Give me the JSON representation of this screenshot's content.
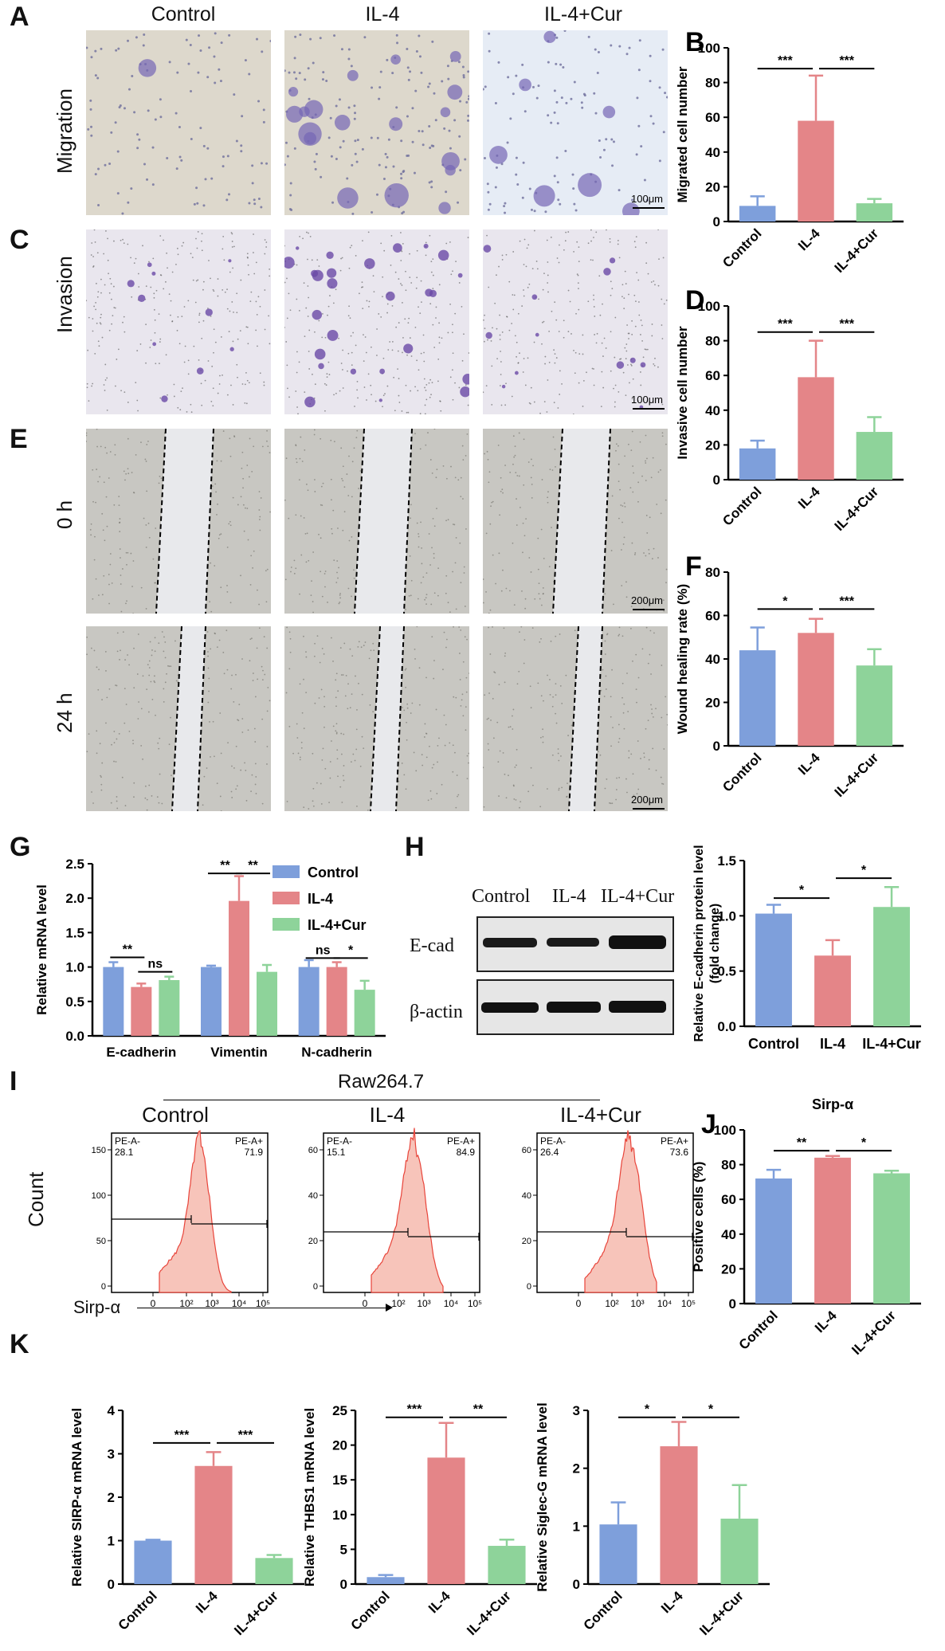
{
  "panels": {
    "A": {
      "letter": "A",
      "columns": [
        "Control",
        "IL-4",
        "IL-4+Cur"
      ],
      "row_label": "Migration",
      "scale": "100μm"
    },
    "C": {
      "letter": "C",
      "row_label": "Invasion",
      "scale": "100μm"
    },
    "E": {
      "letter": "E",
      "row_labels": [
        "0 h",
        "24 h"
      ],
      "scale": "200μm"
    },
    "G": {
      "letter": "G"
    },
    "H": {
      "letter": "H",
      "lanes": [
        "Control",
        "IL-4",
        "IL-4+Cur"
      ],
      "bands": [
        "E-cad",
        "β-actin"
      ]
    },
    "I": {
      "letter": "I",
      "group": "Raw264.7",
      "columns": [
        "Control",
        "IL-4",
        "IL-4+Cur"
      ],
      "ylabel": "Count",
      "xlabel": "Sirp-α",
      "gates": [
        {
          "neg": "PE-A-",
          "neg_val": "28.1",
          "pos": "PE-A+",
          "pos_val": "71.9",
          "yticks": [
            "0",
            "50",
            "100",
            "150"
          ]
        },
        {
          "neg": "PE-A-",
          "neg_val": "15.1",
          "pos": "PE-A+",
          "pos_val": "84.9",
          "yticks": [
            "0",
            "20",
            "40",
            "60"
          ]
        },
        {
          "neg": "PE-A-",
          "neg_val": "26.4",
          "pos": "PE-A+",
          "pos_val": "73.6",
          "yticks": [
            "0",
            "20",
            "40",
            "60"
          ]
        }
      ],
      "xticks": [
        "0",
        "10²",
        "10³",
        "10⁴",
        "10⁵"
      ]
    },
    "K": {
      "letter": "K"
    }
  },
  "colors": {
    "control": "#7e9fdb",
    "il4": "#e48588",
    "il4cur": "#8ed39a",
    "hist_fill": "#f7c4ba",
    "hist_line": "#e8443a"
  },
  "chart_data": [
    {
      "id": "B",
      "letter": "B",
      "type": "bar",
      "categories": [
        "Control",
        "IL-4",
        "IL-4+Cur"
      ],
      "values": [
        9,
        58,
        10.5
      ],
      "errors": [
        5.5,
        26,
        2.5
      ],
      "ylabel": "Migrated cell number",
      "ylim": [
        0,
        100
      ],
      "yticks": [
        0,
        20,
        40,
        60,
        80,
        100
      ],
      "sig": [
        {
          "from": 0,
          "to": 1,
          "label": "***",
          "y": 88
        },
        {
          "from": 1,
          "to": 2,
          "label": "***",
          "y": 88
        }
      ]
    },
    {
      "id": "D",
      "letter": "D",
      "type": "bar",
      "categories": [
        "Control",
        "IL-4",
        "IL-4+Cur"
      ],
      "values": [
        18,
        59,
        27.5
      ],
      "errors": [
        4.5,
        21,
        8.5
      ],
      "ylabel": "Invasive cell number",
      "ylim": [
        0,
        100
      ],
      "yticks": [
        0,
        20,
        40,
        60,
        80,
        100
      ],
      "sig": [
        {
          "from": 0,
          "to": 1,
          "label": "***",
          "y": 85
        },
        {
          "from": 1,
          "to": 2,
          "label": "***",
          "y": 85
        }
      ]
    },
    {
      "id": "F",
      "letter": "F",
      "type": "bar",
      "categories": [
        "Control",
        "IL-4",
        "IL-4+Cur"
      ],
      "values": [
        44,
        52,
        37
      ],
      "errors": [
        10.5,
        6.5,
        7.5
      ],
      "ylabel": "Wound healing rate (%)",
      "ylim": [
        0,
        80
      ],
      "yticks": [
        0,
        20,
        40,
        60,
        80
      ],
      "sig": [
        {
          "from": 0,
          "to": 1,
          "label": "*",
          "y": 63
        },
        {
          "from": 1,
          "to": 2,
          "label": "***",
          "y": 63
        }
      ]
    },
    {
      "id": "G",
      "type": "bar",
      "categories": [
        "E-cadherin",
        "Vimentin",
        "N-cadherin"
      ],
      "series": [
        {
          "name": "Control",
          "values": [
            1.0,
            1.0,
            1.0
          ],
          "errors": [
            0.07,
            0.02,
            0.1
          ]
        },
        {
          "name": "IL-4",
          "values": [
            0.71,
            1.96,
            1.0
          ],
          "errors": [
            0.05,
            0.36,
            0.07
          ]
        },
        {
          "name": "IL-4+Cur",
          "values": [
            0.81,
            0.93,
            0.67
          ],
          "errors": [
            0.05,
            0.1,
            0.13
          ]
        }
      ],
      "ylabel": "Relative mRNA level",
      "ylim": [
        0,
        2.5
      ],
      "yticks": [
        "0.0",
        "0.5",
        "1.0",
        "1.5",
        "2.0",
        "2.5"
      ],
      "legend": "top-right",
      "sig": [
        {
          "group": 0,
          "from": 0,
          "to": 1,
          "label": "**",
          "y": 1.14
        },
        {
          "group": 0,
          "from": 1,
          "to": 2,
          "label": "ns",
          "y": 0.93
        },
        {
          "group": 1,
          "from": 0,
          "to": 1,
          "label": "**",
          "y": 2.36
        },
        {
          "group": 1,
          "from": 1,
          "to": 2,
          "label": "**",
          "y": 2.36
        },
        {
          "group": 2,
          "from": 0,
          "to": 1,
          "label": "ns",
          "y": 1.13
        },
        {
          "group": 2,
          "from": 1,
          "to": 2,
          "label": "*",
          "y": 1.13
        }
      ]
    },
    {
      "id": "H",
      "type": "bar",
      "categories": [
        "Control",
        "IL-4",
        "IL-4+Cur"
      ],
      "values": [
        1.02,
        0.64,
        1.08
      ],
      "errors": [
        0.08,
        0.14,
        0.18
      ],
      "ylabel": "Relative E-cadherin protein level (fold change)",
      "ylim": [
        0,
        1.5
      ],
      "yticks": [
        "0.0",
        "0.5",
        "1.0",
        "1.5"
      ],
      "sig": [
        {
          "from": 0,
          "to": 1,
          "label": "*",
          "y": 1.16
        },
        {
          "from": 1,
          "to": 2,
          "label": "*",
          "y": 1.34
        }
      ]
    },
    {
      "id": "J",
      "letter": "J",
      "type": "bar",
      "title": "Sirp-α",
      "categories": [
        "Control",
        "IL-4",
        "IL-4+Cur"
      ],
      "values": [
        72,
        84,
        75
      ],
      "errors": [
        5,
        1,
        1.5
      ],
      "ylabel": "Positive cells (%)",
      "ylim": [
        0,
        100
      ],
      "yticks": [
        0,
        20,
        40,
        60,
        80,
        100
      ],
      "sig": [
        {
          "from": 0,
          "to": 1,
          "label": "**",
          "y": 88
        },
        {
          "from": 1,
          "to": 2,
          "label": "*",
          "y": 88
        }
      ]
    },
    {
      "id": "K1",
      "type": "bar",
      "categories": [
        "Control",
        "IL-4",
        "IL-4+Cur"
      ],
      "values": [
        1.0,
        2.72,
        0.6
      ],
      "errors": [
        0.02,
        0.32,
        0.07
      ],
      "ylabel": "Relative SIRP-α mRNA level",
      "ylim": [
        0,
        4
      ],
      "yticks": [
        0,
        1,
        2,
        3,
        4
      ],
      "sig": [
        {
          "from": 0,
          "to": 1,
          "label": "***",
          "y": 3.25
        },
        {
          "from": 1,
          "to": 2,
          "label": "***",
          "y": 3.25
        }
      ]
    },
    {
      "id": "K2",
      "type": "bar",
      "categories": [
        "Control",
        "IL-4",
        "IL-4+Cur"
      ],
      "values": [
        1.0,
        18.2,
        5.5
      ],
      "errors": [
        0.3,
        5,
        0.9
      ],
      "ylabel": "Relative THBS1 mRNA level",
      "ylim": [
        0,
        25
      ],
      "yticks": [
        0,
        5,
        10,
        15,
        20,
        25
      ],
      "sig": [
        {
          "from": 0,
          "to": 1,
          "label": "***",
          "y": 24
        },
        {
          "from": 1,
          "to": 2,
          "label": "**",
          "y": 24
        }
      ]
    },
    {
      "id": "K3",
      "type": "bar",
      "categories": [
        "Control",
        "IL-4",
        "IL-4+Cur"
      ],
      "values": [
        1.03,
        2.38,
        1.13
      ],
      "errors": [
        0.38,
        0.42,
        0.58
      ],
      "ylabel": "Relative Siglec-G mRNA level",
      "ylim": [
        0,
        3
      ],
      "yticks": [
        0,
        1,
        2,
        3
      ],
      "sig": [
        {
          "from": 0,
          "to": 1,
          "label": "*",
          "y": 2.88
        },
        {
          "from": 1,
          "to": 2,
          "label": "*",
          "y": 2.88
        }
      ]
    }
  ]
}
